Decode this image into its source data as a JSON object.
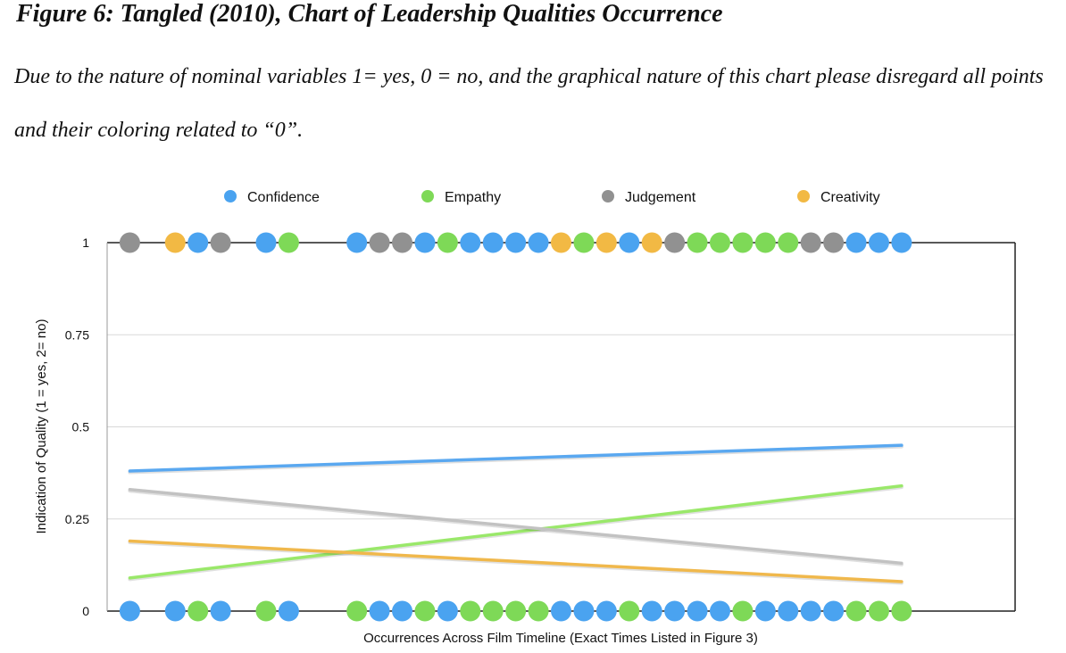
{
  "figure": {
    "title": "Figure 6: Tangled (2010), Chart of Leadership Qualities Occurrence",
    "caption": "Due to the nature of nominal variables 1= yes, 0 = no, and the graphical nature of this chart please disregard all points and their coloring related to “0”."
  },
  "chart_data": {
    "type": "scatter",
    "xlabel": "Occurrences Across Film Timeline (Exact Times Listed in Figure 3)",
    "ylabel": "Indication of Quality (1 = yes, 2= no)",
    "ylim": [
      0,
      1
    ],
    "yticks": [
      {
        "value": 0,
        "label": "0"
      },
      {
        "value": 0.25,
        "label": "0.25"
      },
      {
        "value": 0.5,
        "label": "0.5"
      },
      {
        "value": 0.75,
        "label": "0.75"
      },
      {
        "value": 1,
        "label": "1"
      }
    ],
    "grid": true,
    "legend_position": "top",
    "x": [
      1,
      3,
      4,
      5,
      7,
      8,
      11,
      12,
      13,
      14,
      15,
      16,
      17,
      18,
      19,
      20,
      21,
      22,
      23,
      24,
      25,
      26,
      27,
      28,
      29,
      30,
      31,
      32,
      33,
      34,
      35
    ],
    "top_colors": [
      "judgement",
      "creativity",
      "confidence",
      "judgement",
      "confidence",
      "empathy",
      "confidence",
      "judgement",
      "judgement",
      "confidence",
      "empathy",
      "confidence",
      "confidence",
      "confidence",
      "confidence",
      "creativity",
      "empathy",
      "creativity",
      "confidence",
      "creativity",
      "judgement",
      "empathy",
      "empathy",
      "empathy",
      "empathy",
      "empathy",
      "judgement",
      "judgement",
      "confidence",
      "confidence",
      "confidence"
    ],
    "bottom_colors": [
      "confidence",
      "confidence",
      "empathy",
      "confidence",
      "empathy",
      "confidence",
      "empathy",
      "confidence",
      "confidence",
      "empathy",
      "confidence",
      "empathy",
      "empathy",
      "empathy",
      "empathy",
      "confidence",
      "confidence",
      "confidence",
      "empathy",
      "confidence",
      "confidence",
      "confidence",
      "confidence",
      "empathy",
      "confidence",
      "confidence",
      "confidence",
      "confidence",
      "empathy",
      "empathy",
      "empathy"
    ],
    "series": [
      {
        "key": "confidence",
        "name": "Confidence",
        "color": "#4aa3f0",
        "trend": [
          0.38,
          0.45
        ]
      },
      {
        "key": "empathy",
        "name": "Empathy",
        "color": "#7ed957",
        "trend": [
          0.09,
          0.34
        ]
      },
      {
        "key": "judgement",
        "name": "Judgement",
        "color": "#919191",
        "trend": [
          0.33,
          0.13
        ]
      },
      {
        "key": "creativity",
        "name": "Creativity",
        "color": "#f2b944",
        "trend": [
          0.19,
          0.08
        ]
      }
    ],
    "trend_colors": {
      "confidence": "#5aa8f0",
      "empathy": "#9ae86a",
      "judgement": "#c2c2c2",
      "creativity": "#f0b84c"
    },
    "plot_colors": {
      "axis": "#222222",
      "grid": "#d8d8d8"
    }
  }
}
